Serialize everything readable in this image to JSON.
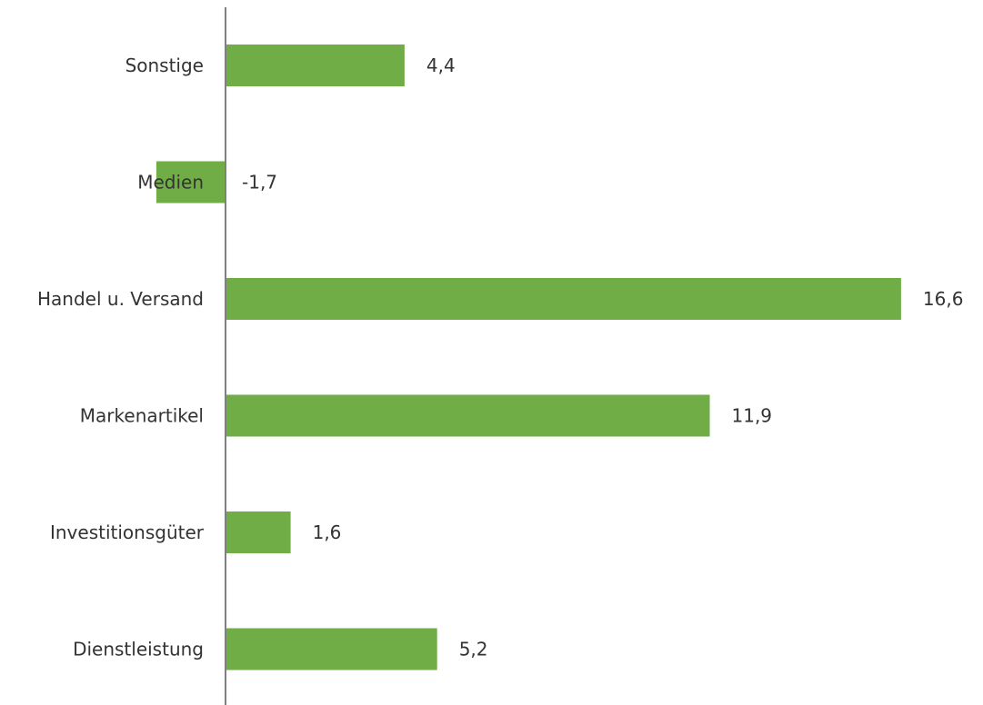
{
  "chart_data": {
    "type": "bar",
    "orientation": "horizontal",
    "categories": [
      "Sonstige",
      "Medien",
      "Handel u. Versand",
      "Markenartikel",
      "Investitionsgüter",
      "Dienstleistung"
    ],
    "values": [
      4.4,
      -1.7,
      16.6,
      11.9,
      1.6,
      5.2
    ],
    "value_labels": [
      "4,4",
      "-1,7",
      "16,6",
      "11,9",
      "1,6",
      "5,2"
    ],
    "title": "",
    "xlabel": "",
    "ylabel": "",
    "xlim": [
      -1.7,
      16.6
    ],
    "grid": false,
    "legend": "none",
    "bar_color": "#70ad47",
    "axis_color": "#808080"
  }
}
